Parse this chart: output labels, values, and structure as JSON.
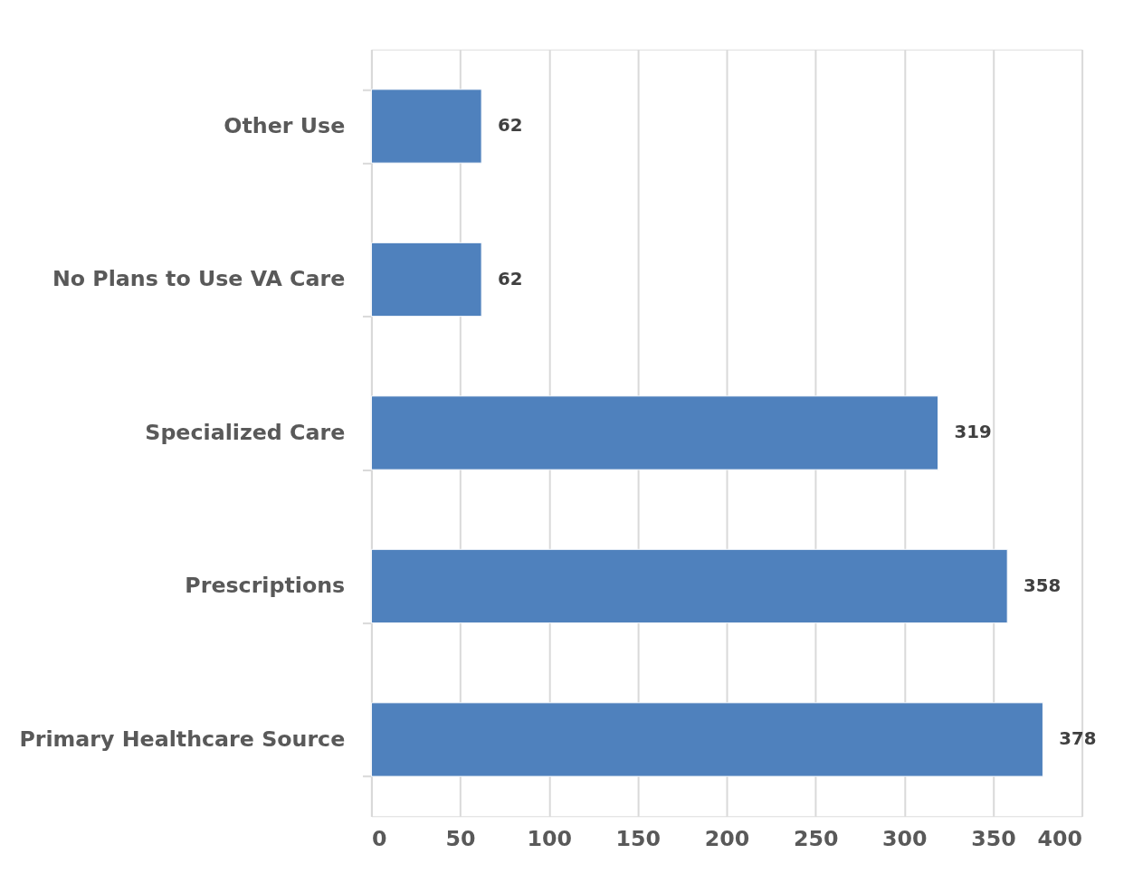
{
  "chart_data": {
    "type": "bar",
    "orientation": "horizontal",
    "categories": [
      "Other Use",
      "No Plans to Use VA Care",
      "Specialized Care",
      "Prescriptions",
      "Primary Healthcare Source"
    ],
    "values": [
      62,
      62,
      319,
      358,
      378
    ],
    "color": "#4f81bd",
    "xlim": [
      0,
      400
    ],
    "xticks": [
      0,
      50,
      100,
      150,
      200,
      250,
      300,
      350,
      400
    ],
    "grid": "x",
    "data_labels": true
  }
}
